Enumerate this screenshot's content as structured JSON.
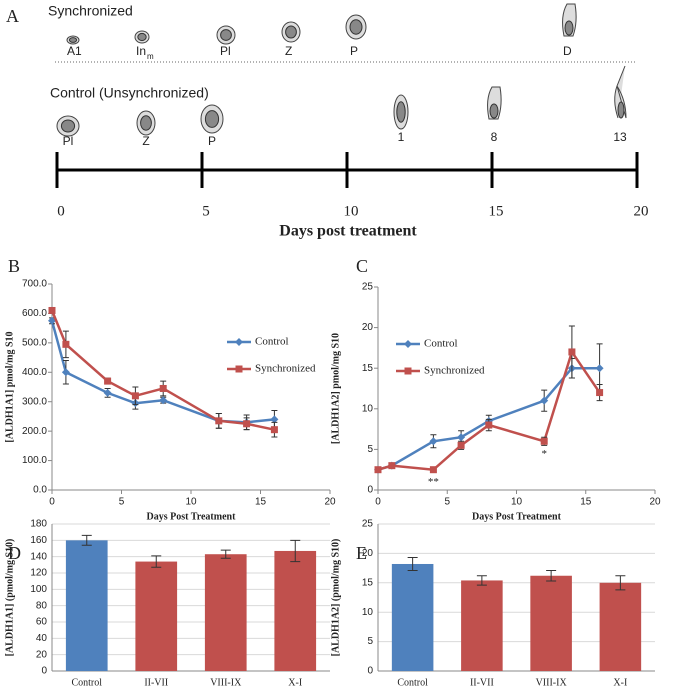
{
  "diagram": {
    "panel": "A",
    "sync_title": "Synchronized",
    "sync_stages": [
      {
        "text": "A1"
      },
      {
        "text": "In",
        "sub": "m"
      },
      {
        "text": "Pl"
      },
      {
        "text": "Z"
      },
      {
        "text": "P"
      },
      {
        "text": "D"
      }
    ],
    "control_title": "Control (Unsynchronized)",
    "control_stages": [
      "Pl",
      "Z",
      "P",
      "1",
      "8",
      "13"
    ],
    "ticks": [
      0,
      5,
      10,
      15,
      20
    ],
    "xlim": [
      0,
      20
    ],
    "xlabel": "Days post treatment"
  },
  "chart_data": [
    {
      "type": "line",
      "panel": "B",
      "ylabel": "[ALDH1A1] pmol/mg S10",
      "xlabel": "Days Post Treatment",
      "x": [
        0,
        1,
        4,
        6,
        8,
        12,
        14,
        16
      ],
      "xlim": [
        0,
        20
      ],
      "xticks": [
        0,
        5,
        10,
        15,
        20
      ],
      "ylim": [
        0,
        700
      ],
      "yticks": [
        {
          "value": 0,
          "label": "0.0"
        },
        {
          "value": 100,
          "label": "100.0"
        },
        {
          "value": 200,
          "label": "200.0"
        },
        {
          "value": 300,
          "label": "300.0"
        },
        {
          "value": 400,
          "label": "400.0"
        },
        {
          "value": 500,
          "label": "500.0"
        },
        {
          "value": 600,
          "label": "600.0"
        },
        {
          "value": 700,
          "label": "700.0"
        }
      ],
      "grid": false,
      "legend": "right",
      "series": [
        {
          "name": "Control",
          "color": "#4f81bd",
          "marker": "diamond",
          "values": [
            575,
            400,
            330,
            295,
            305,
            235,
            230,
            240
          ],
          "errors": [
            10,
            40,
            15,
            20,
            10,
            25,
            25,
            30
          ]
        },
        {
          "name": "Synchronized",
          "color": "#c0504d",
          "marker": "square",
          "values": [
            610,
            495,
            370,
            320,
            345,
            235,
            225,
            205
          ],
          "errors": [
            10,
            45,
            10,
            30,
            25,
            25,
            20,
            25
          ]
        }
      ]
    },
    {
      "type": "line",
      "panel": "C",
      "ylabel": "[ALDH1A2] pmol/mg S10",
      "xlabel": "Days Post Treatment",
      "x": [
        0,
        1,
        4,
        6,
        8,
        12,
        14,
        16
      ],
      "xlim": [
        0,
        20
      ],
      "xticks": [
        0,
        5,
        10,
        15,
        20
      ],
      "ylim": [
        0,
        25
      ],
      "yticks": [
        0,
        5,
        10,
        15,
        20,
        25
      ],
      "grid": false,
      "legend": "left",
      "series": [
        {
          "name": "Control",
          "color": "#4f81bd",
          "marker": "diamond",
          "values": [
            2.5,
            3,
            6,
            6.5,
            8.5,
            11,
            15,
            15
          ],
          "errors": [
            0.3,
            0.3,
            0.8,
            0.8,
            0.7,
            1.3,
            1.2,
            3
          ]
        },
        {
          "name": "Synchronized",
          "color": "#c0504d",
          "marker": "square",
          "values": [
            2.5,
            3,
            2.5,
            5.5,
            8,
            6,
            17,
            12
          ],
          "errors": [
            0.3,
            0.3,
            0.3,
            0.5,
            0.7,
            0.5,
            3.2,
            1
          ]
        }
      ],
      "annotations": [
        {
          "text": "**",
          "x": 4
        },
        {
          "text": "*",
          "x": 12
        }
      ]
    },
    {
      "type": "bar",
      "panel": "D",
      "ylabel": "[ALDH1A1] (pmol/mg S10)",
      "categories": [
        "Control",
        "II-VII",
        "VIII-IX",
        "X-I"
      ],
      "values": [
        160,
        134,
        143,
        147
      ],
      "errors": [
        6,
        7,
        5,
        13
      ],
      "colors": [
        "#4f81bd",
        "#c0504d",
        "#c0504d",
        "#c0504d"
      ],
      "ylim": [
        0,
        180
      ],
      "yticks": [
        0,
        20,
        40,
        60,
        80,
        100,
        120,
        140,
        160,
        180
      ],
      "grid": true
    },
    {
      "type": "bar",
      "panel": "E",
      "ylabel": "[ALDH1A2] (pmol/mg S10)",
      "categories": [
        "Control",
        "II-VII",
        "VIII-IX",
        "X-I"
      ],
      "values": [
        18.2,
        15.4,
        16.2,
        15.0
      ],
      "errors": [
        1.1,
        0.8,
        0.9,
        1.2
      ],
      "colors": [
        "#4f81bd",
        "#c0504d",
        "#c0504d",
        "#c0504d"
      ],
      "ylim": [
        0,
        25
      ],
      "yticks": [
        0,
        5,
        10,
        15,
        20,
        25
      ],
      "grid": true
    }
  ]
}
